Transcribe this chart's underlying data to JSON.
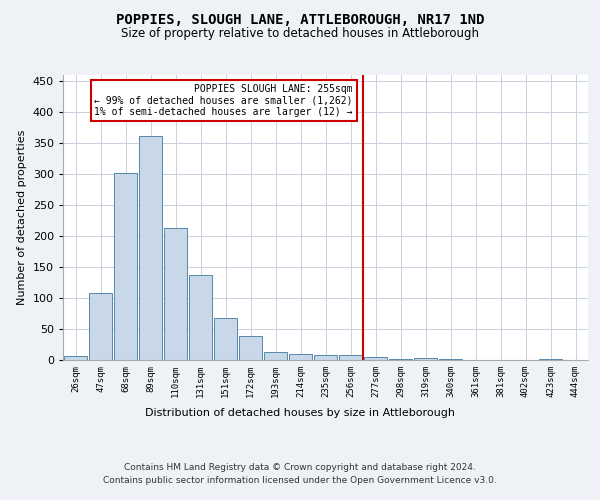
{
  "title": "POPPIES, SLOUGH LANE, ATTLEBOROUGH, NR17 1ND",
  "subtitle": "Size of property relative to detached houses in Attleborough",
  "xlabel": "Distribution of detached houses by size in Attleborough",
  "ylabel": "Number of detached properties",
  "footer_line1": "Contains HM Land Registry data © Crown copyright and database right 2024.",
  "footer_line2": "Contains public sector information licensed under the Open Government Licence v3.0.",
  "bar_labels": [
    "26sqm",
    "47sqm",
    "68sqm",
    "89sqm",
    "110sqm",
    "131sqm",
    "151sqm",
    "172sqm",
    "193sqm",
    "214sqm",
    "235sqm",
    "256sqm",
    "277sqm",
    "298sqm",
    "319sqm",
    "340sqm",
    "361sqm",
    "381sqm",
    "402sqm",
    "423sqm",
    "444sqm"
  ],
  "bar_values": [
    7,
    108,
    302,
    362,
    213,
    137,
    68,
    38,
    13,
    9,
    8,
    8,
    5,
    2,
    3,
    1,
    0,
    0,
    0,
    2,
    0
  ],
  "bar_color": "#c8d8e8",
  "bar_edge_color": "#5588aa",
  "highlight_index": 11,
  "highlight_line_color": "#cc0000",
  "annotation_title": "POPPIES SLOUGH LANE: 255sqm",
  "annotation_line1": "← 99% of detached houses are smaller (1,262)",
  "annotation_line2": "1% of semi-detached houses are larger (12) →",
  "annotation_box_color": "#cc0000",
  "ylim": [
    0,
    460
  ],
  "yticks": [
    0,
    50,
    100,
    150,
    200,
    250,
    300,
    350,
    400,
    450
  ],
  "bg_color": "#eef2f7",
  "plot_bg_color": "#ffffff",
  "grid_color": "#c8d0dc"
}
